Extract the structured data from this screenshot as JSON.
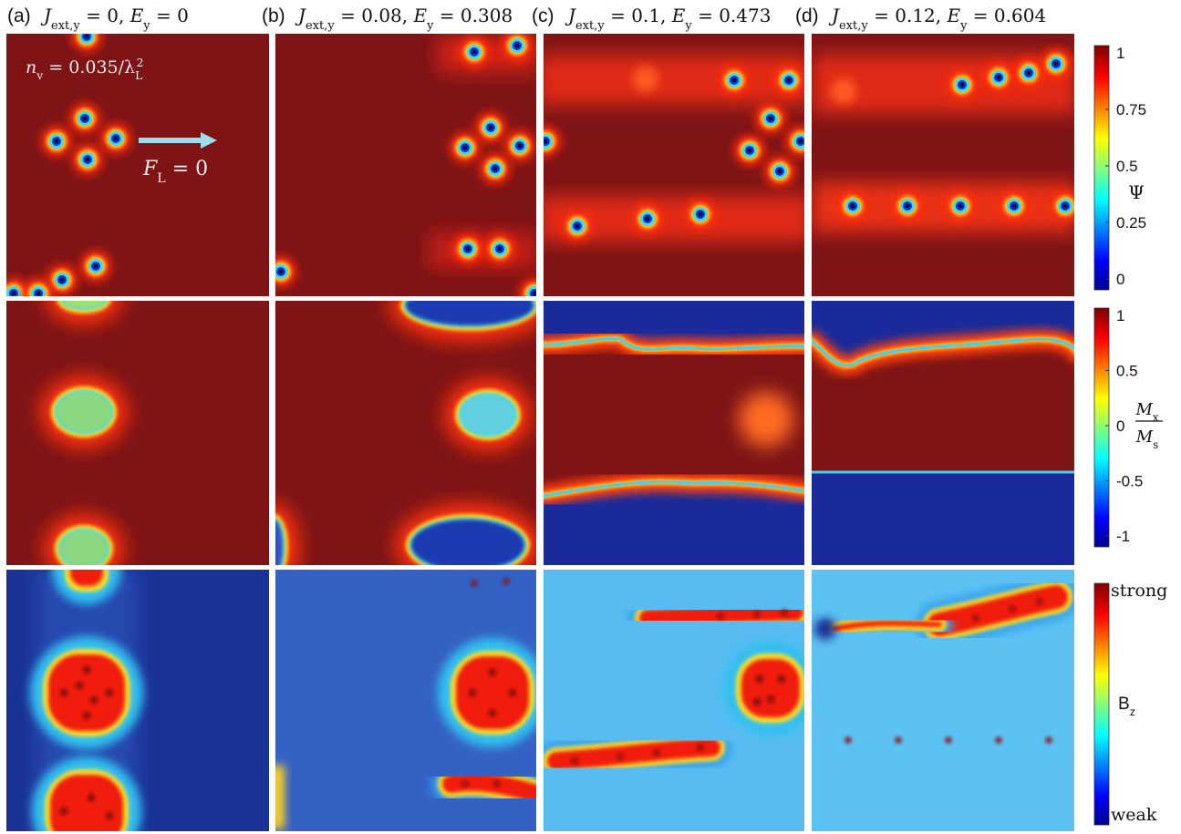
{
  "panels": [
    {
      "label": "(a)",
      "title": [
        {
          "t": "J"
        },
        {
          "sub": "ext,y"
        },
        {
          "t": " = 0, "
        },
        {
          "t": "E"
        },
        {
          "sub": "y"
        },
        {
          "t": " = 0"
        }
      ]
    },
    {
      "label": "(b)",
      "title": [
        {
          "t": "J"
        },
        {
          "sub": "ext,y"
        },
        {
          "t": " = 0.08, "
        },
        {
          "t": "E"
        },
        {
          "sub": "y"
        },
        {
          "t": " = 0.308"
        }
      ]
    },
    {
      "label": "(c)",
      "title": [
        {
          "t": "J"
        },
        {
          "sub": "ext,y"
        },
        {
          "t": " = 0.1, "
        },
        {
          "t": "E"
        },
        {
          "sub": "y"
        },
        {
          "t": " = 0.473"
        }
      ]
    },
    {
      "label": "(d)",
      "title": [
        {
          "t": "J"
        },
        {
          "sub": "ext,y"
        },
        {
          "t": " = 0.12, "
        },
        {
          "t": "E"
        },
        {
          "sub": "y"
        },
        {
          "t": " = 0.604"
        }
      ]
    }
  ],
  "annotations": {
    "density": [
      {
        "t": "n"
      },
      {
        "sub": "v"
      },
      {
        "t": " = 0.035/λ"
      },
      {
        "sub": "L"
      },
      {
        "sup": "2"
      }
    ],
    "force": [
      {
        "t": "F"
      },
      {
        "sub": "L"
      },
      {
        "t": " = 0"
      }
    ]
  },
  "colorbars": [
    {
      "label": [
        {
          "t": "Ψ"
        }
      ],
      "range": [
        0,
        1
      ],
      "ticks": [
        1,
        0.75,
        0.5,
        0.25,
        0
      ]
    },
    {
      "label_numerator": [
        {
          "t": "M"
        },
        {
          "sub": "x"
        }
      ],
      "label_denominator": [
        {
          "t": "M"
        },
        {
          "sub": "s"
        }
      ],
      "range": [
        -1,
        1
      ],
      "ticks": [
        1,
        0.5,
        0,
        -0.5,
        -1
      ]
    },
    {
      "top": "strong",
      "bottom": "weak",
      "label": [
        {
          "t": "B"
        },
        {
          "sub": "z"
        }
      ]
    }
  ]
}
